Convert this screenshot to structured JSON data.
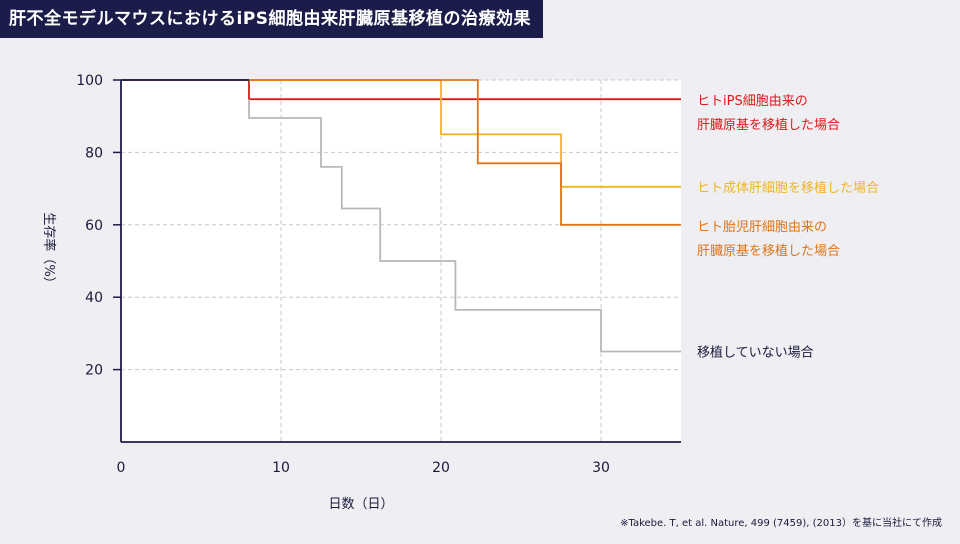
{
  "chart_data": {
    "type": "line",
    "step": true,
    "title": "肝不全モデルマウスにおけるiPS細胞由来肝臓原基移植の治療効果",
    "xlabel": "日数（日）",
    "ylabel": "生存率（%）",
    "xlim": [
      0,
      35
    ],
    "ylim": [
      0,
      100
    ],
    "xticks": [
      0,
      10,
      20,
      30
    ],
    "yticks": [
      20,
      40,
      60,
      80,
      100
    ],
    "grid": true,
    "legend_placement": "right",
    "series": [
      {
        "name_lines": [
          "ヒトiPS細胞由来の",
          "肝臓原基を移植した場合"
        ],
        "color": "#e01818",
        "x": [
          0,
          8,
          8,
          35
        ],
        "y": [
          100,
          100,
          94.7,
          94.7
        ]
      },
      {
        "name_lines": [
          "ヒト成体肝細胞を移植した場合"
        ],
        "color": "#f0b429",
        "x": [
          8,
          20,
          20,
          27.5,
          27.5,
          35
        ],
        "y": [
          100,
          100,
          85,
          85,
          70.5,
          70.5
        ]
      },
      {
        "name_lines": [
          "ヒト胎児肝細胞由来の",
          "肝臓原基を移植した場合"
        ],
        "color": "#e07418",
        "x": [
          8,
          22.3,
          22.3,
          27.5,
          27.5,
          35
        ],
        "y": [
          100,
          100,
          77,
          77,
          60,
          60
        ]
      },
      {
        "name_lines": [
          "移植していない場合"
        ],
        "color": "#b8b8b8",
        "x": [
          8,
          8,
          12.5,
          12.5,
          13.8,
          13.8,
          16.2,
          16.2,
          20.9,
          20.9,
          30,
          30,
          35
        ],
        "y": [
          94.7,
          89.5,
          89.5,
          76,
          76,
          64.5,
          64.5,
          50,
          50,
          36.5,
          36.5,
          25,
          25
        ]
      }
    ],
    "source_note": "※Takebe. T, et al. Nature, 499 (7459), (2013）を基に当社にて作成"
  }
}
